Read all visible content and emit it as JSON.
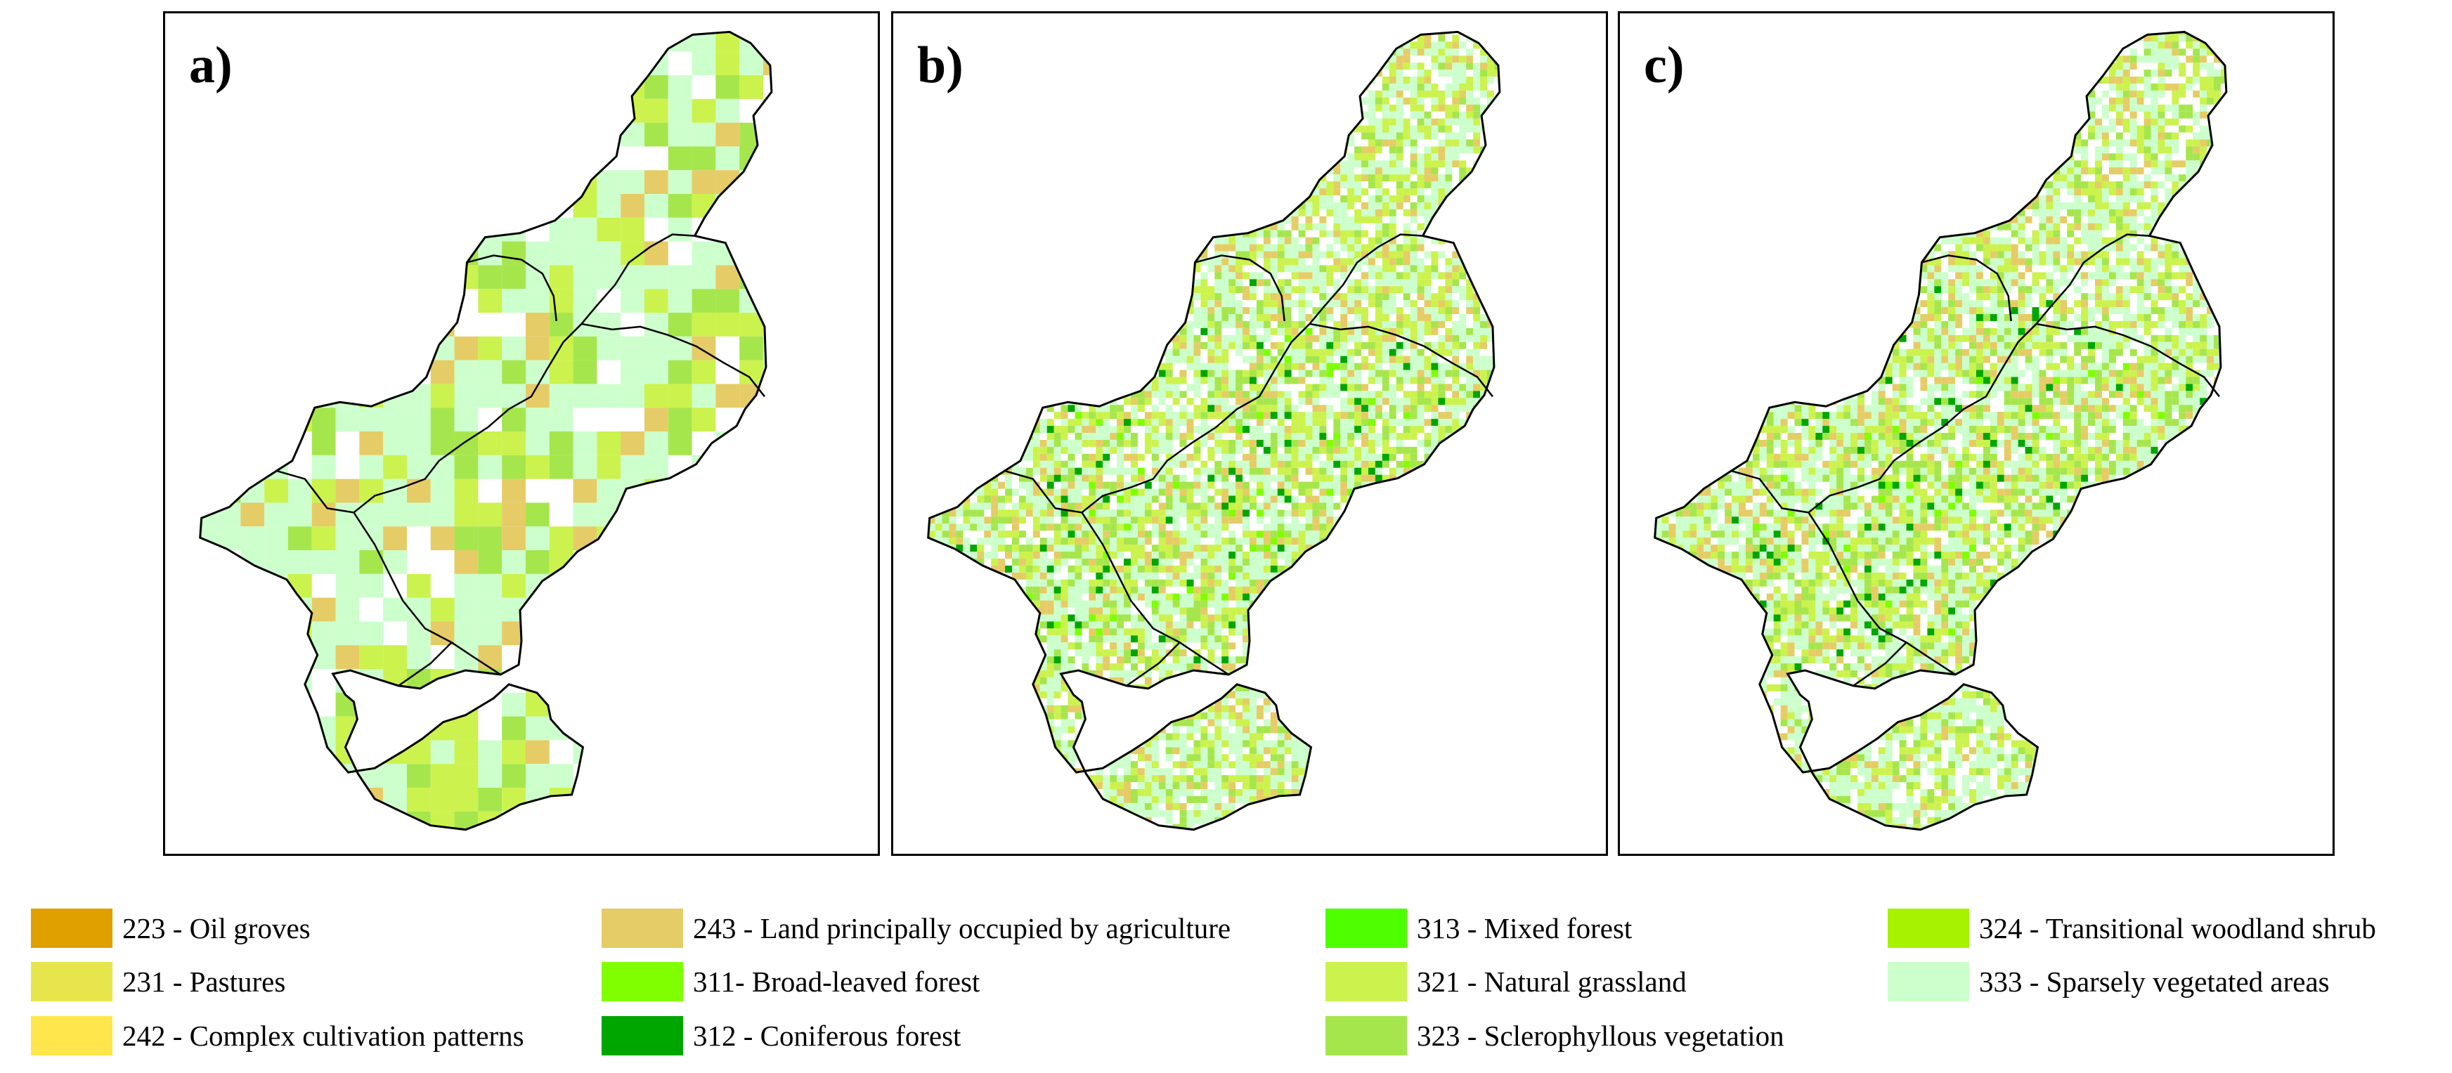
{
  "panels": [
    {
      "id": "a",
      "label": "a)",
      "style": "grid"
    },
    {
      "id": "b",
      "label": "b)",
      "style": "detail"
    },
    {
      "id": "c",
      "label": "c)",
      "style": "detail"
    }
  ],
  "legend": [
    {
      "code": "223",
      "text": "223 - Oil groves",
      "color": "#e0a000"
    },
    {
      "code": "231",
      "text": "231 - Pastures",
      "color": "#e6e64c"
    },
    {
      "code": "242",
      "text": "242 - Complex cultivation patterns",
      "color": "#ffe64c"
    },
    {
      "code": "243",
      "text": "243 - Land principally occupied by agriculture",
      "color": "#e6cc66"
    },
    {
      "code": "311",
      "text": "311- Broad-leaved forest",
      "color": "#80ff00"
    },
    {
      "code": "312",
      "text": "312 - Coniferous forest",
      "color": "#00a600"
    },
    {
      "code": "313",
      "text": "313 - Mixed forest",
      "color": "#4dff00"
    },
    {
      "code": "321",
      "text": "321 - Natural grassland",
      "color": "#ccf24d"
    },
    {
      "code": "323",
      "text": "323 - Sclerophyllous vegetation",
      "color": "#a6e64d"
    },
    {
      "code": "324",
      "text": "324 - Transitional woodland shrub",
      "color": "#a6f200"
    },
    {
      "code": "333",
      "text": "333 - Sparsely vegetated areas",
      "color": "#ccffcc"
    }
  ]
}
